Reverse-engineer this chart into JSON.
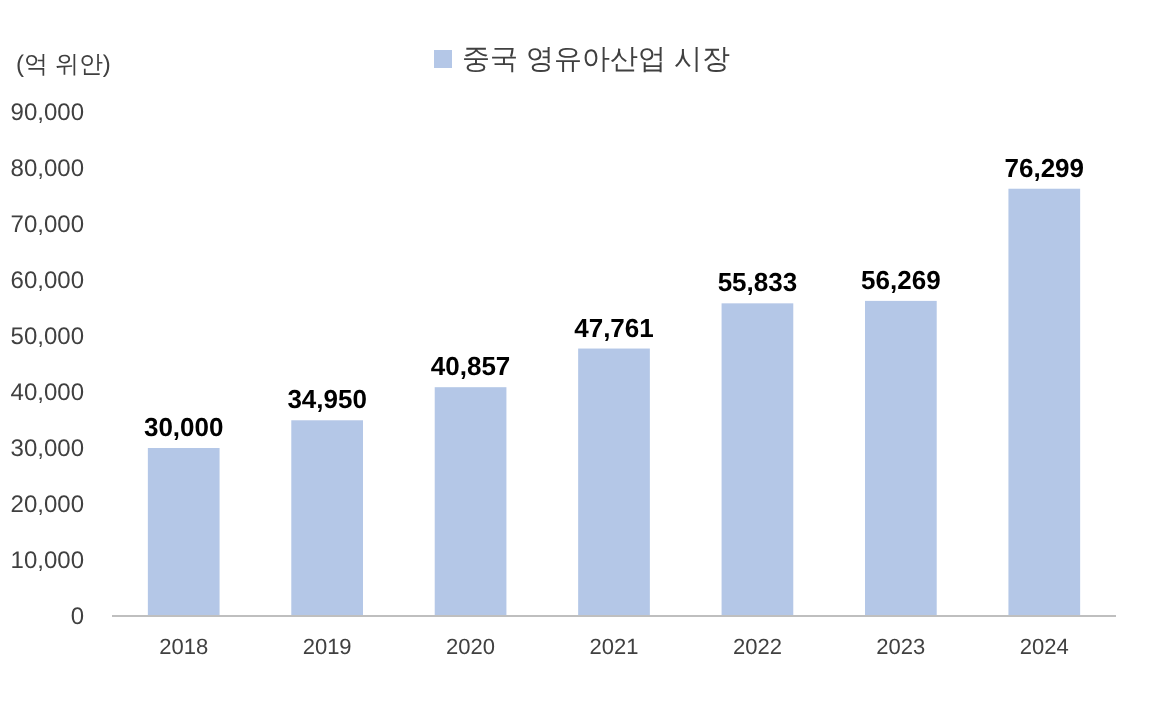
{
  "chart_data": {
    "type": "bar",
    "ylabel": "(억 위안)",
    "categories": [
      "2018",
      "2019",
      "2020",
      "2021",
      "2022",
      "2023",
      "2024"
    ],
    "series": [
      {
        "name": "중국 영유아산업 시장",
        "color": "#b4c7e7",
        "values": [
          30000,
          34950,
          40857,
          47761,
          55833,
          56269,
          76299
        ],
        "value_labels": [
          "30,000",
          "34,950",
          "40,857",
          "47,761",
          "55,833",
          "56,269",
          "76,299"
        ]
      }
    ],
    "ylim": [
      0,
      90000
    ],
    "yticks": [
      {
        "value": 0,
        "label": "0"
      },
      {
        "value": 10000,
        "label": "10,000"
      },
      {
        "value": 20000,
        "label": "20,000"
      },
      {
        "value": 30000,
        "label": "30,000"
      },
      {
        "value": 40000,
        "label": "40,000"
      },
      {
        "value": 50000,
        "label": "50,000"
      },
      {
        "value": 60000,
        "label": "60,000"
      },
      {
        "value": 70000,
        "label": "70,000"
      },
      {
        "value": 80000,
        "label": "80,000"
      },
      {
        "value": 90000,
        "label": "90,000"
      }
    ],
    "legend": "top",
    "grid": false
  }
}
